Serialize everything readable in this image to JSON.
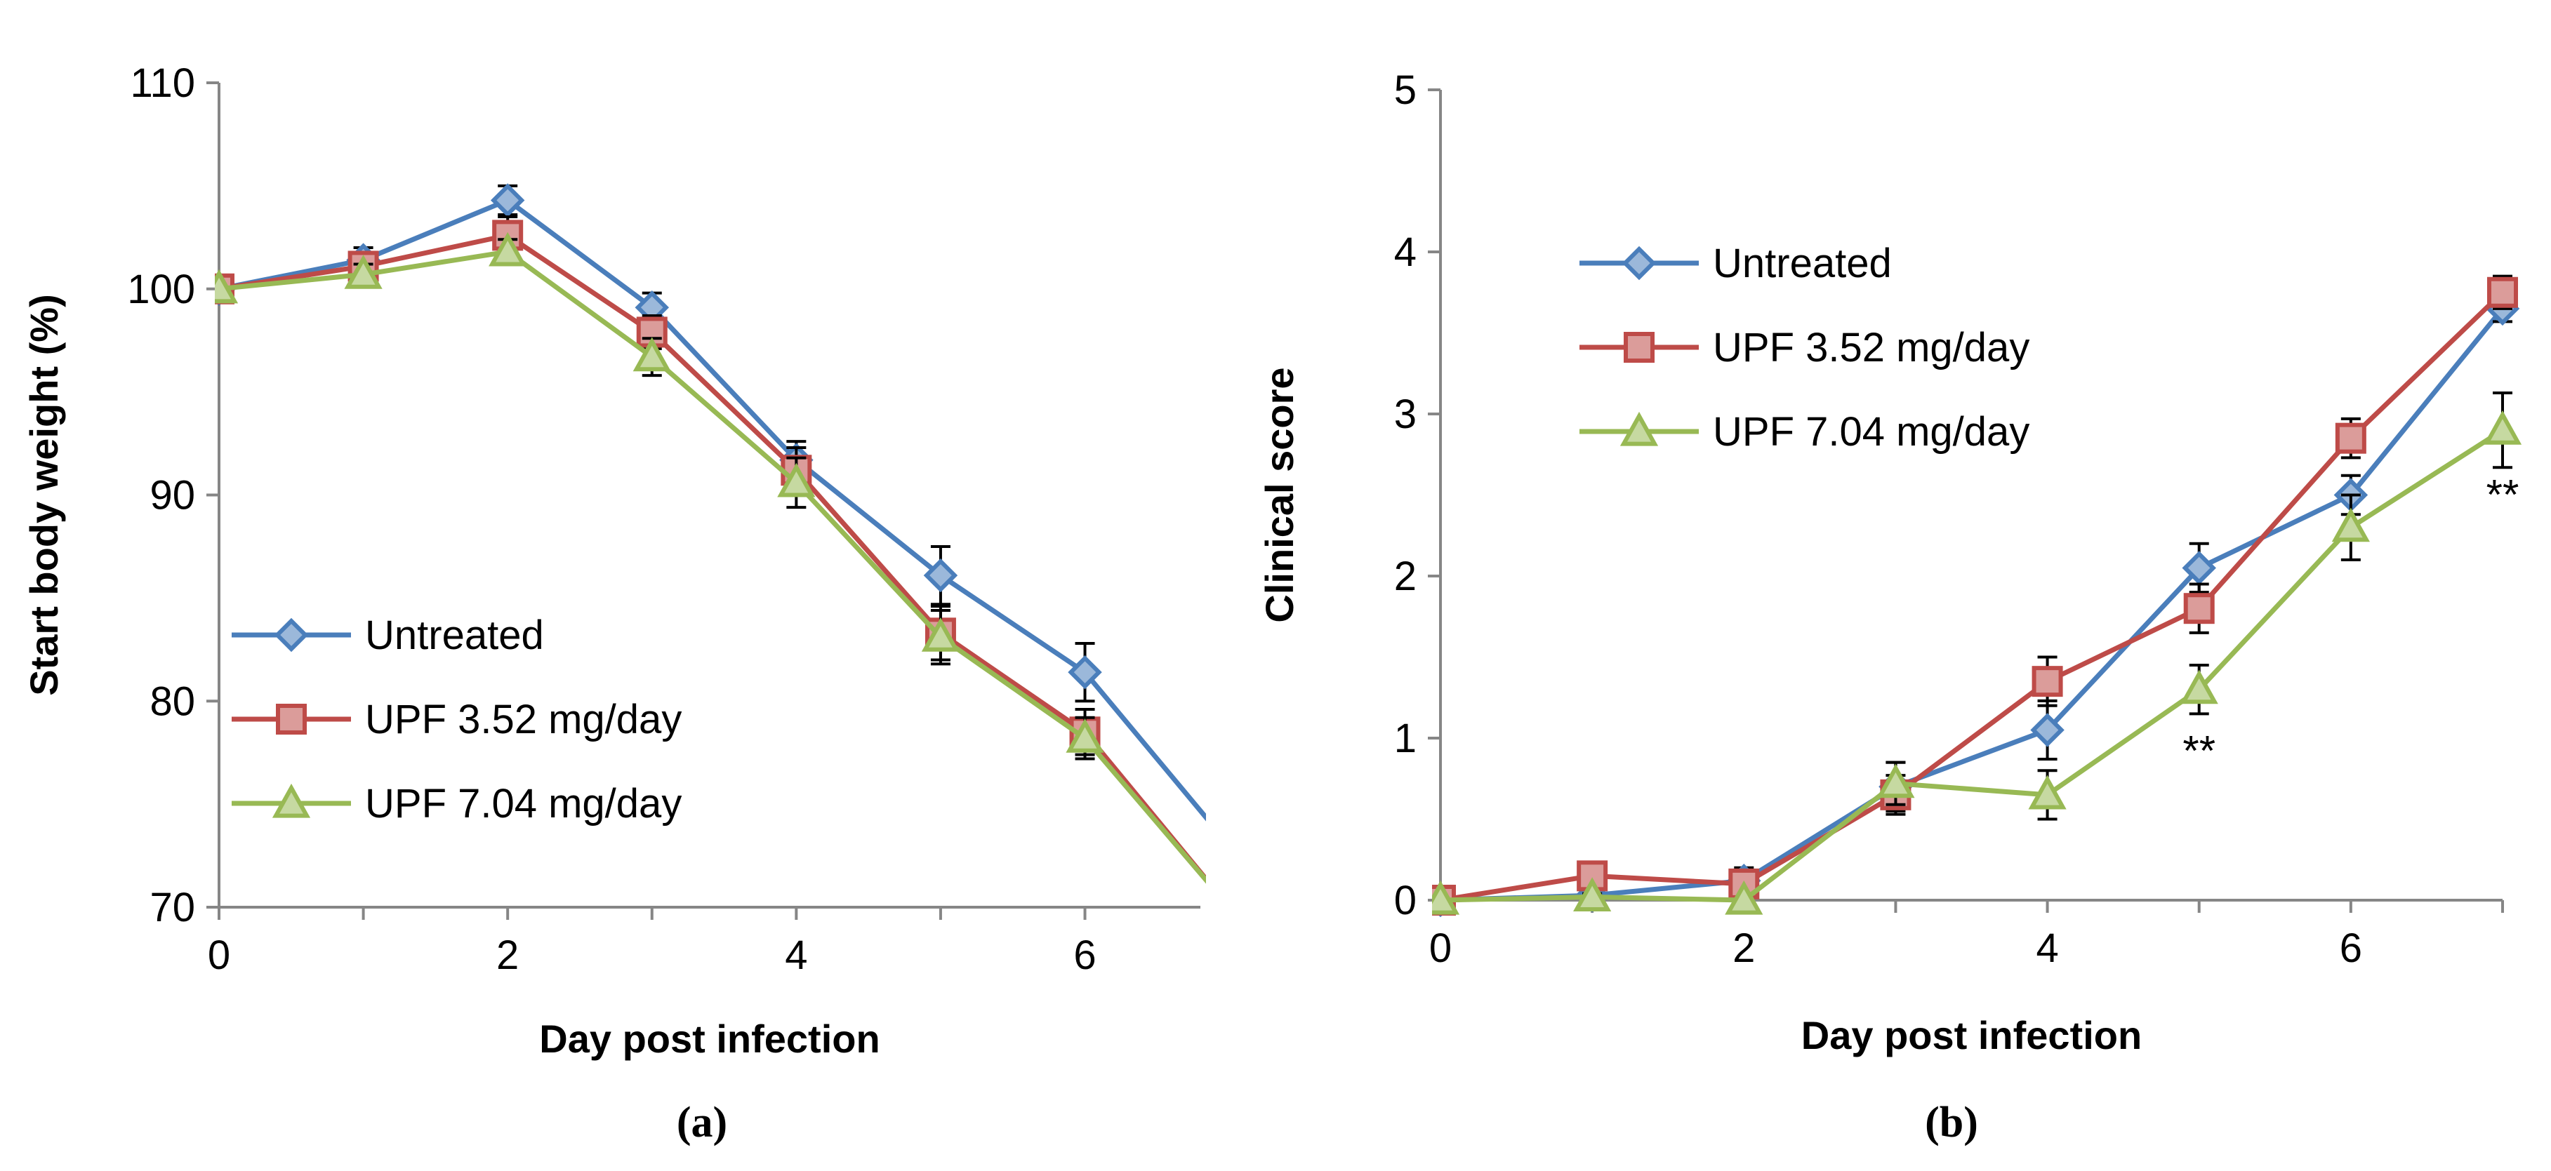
{
  "colors": {
    "untreated": "#4A7EBB",
    "upf352": "#BE4B48",
    "upf704": "#98B954",
    "axis": "#868686",
    "error": "#000000"
  },
  "chart_data": [
    {
      "type": "line",
      "panel_label": "(a)",
      "xlabel": "Day post infection",
      "ylabel": "Start body weight (%)",
      "xlim": [
        0,
        6.8
      ],
      "ylim": [
        70,
        110
      ],
      "xticks": [
        0,
        2,
        4,
        6
      ],
      "yticks": [
        70,
        80,
        90,
        100,
        110
      ],
      "grid": false,
      "legend_position": "bottom-left",
      "series": [
        {
          "name": "Untreated",
          "marker": "diamond",
          "color": "#4A7EBB",
          "x": [
            0,
            1,
            2,
            3,
            4,
            5,
            6,
            7
          ],
          "y": [
            100,
            101.4,
            104.3,
            99.1,
            91.7,
            86.1,
            81.4,
            73
          ],
          "error": [
            0,
            0.6,
            0.7,
            0.7,
            0.9,
            1.4,
            1.4,
            0
          ]
        },
        {
          "name": "UPF 3.52 mg/day",
          "marker": "square",
          "color": "#BE4B48",
          "x": [
            0,
            1,
            2,
            3,
            4,
            5,
            6,
            7
          ],
          "y": [
            100,
            101.1,
            102.6,
            97.9,
            91.2,
            83.3,
            78.5,
            70
          ],
          "error": [
            0,
            0.6,
            0.9,
            0.8,
            1.1,
            1.3,
            1.1,
            0
          ]
        },
        {
          "name": "UPF 7.04 mg/day",
          "marker": "triangle",
          "color": "#98B954",
          "x": [
            0,
            1,
            2,
            3,
            4,
            5,
            6,
            7
          ],
          "y": [
            100,
            100.7,
            101.8,
            96.7,
            90.6,
            83.1,
            78.2,
            70
          ],
          "error": [
            0,
            0.5,
            0.6,
            0.9,
            1.2,
            1.3,
            1.0,
            0
          ]
        }
      ],
      "annotations": []
    },
    {
      "type": "line",
      "panel_label": "(b)",
      "xlabel": "Day post infection",
      "ylabel": "Clinical score",
      "xlim": [
        0,
        7
      ],
      "ylim": [
        0,
        5
      ],
      "xticks": [
        0,
        2,
        4,
        6
      ],
      "yticks": [
        0,
        1,
        2,
        3,
        4,
        5
      ],
      "grid": false,
      "legend_position": "top-left",
      "series": [
        {
          "name": "Untreated",
          "marker": "diamond",
          "color": "#4A7EBB",
          "x": [
            0,
            1,
            2,
            3,
            4,
            5,
            6,
            7
          ],
          "y": [
            0,
            0.03,
            0.12,
            0.7,
            1.05,
            2.05,
            2.5,
            3.65
          ],
          "error": [
            0,
            0.03,
            0.08,
            0.15,
            0.18,
            0.15,
            0.12,
            0.08
          ]
        },
        {
          "name": "UPF 3.52 mg/day",
          "marker": "square",
          "color": "#BE4B48",
          "x": [
            0,
            1,
            2,
            3,
            4,
            5,
            6,
            7
          ],
          "y": [
            0,
            0.15,
            0.1,
            0.65,
            1.35,
            1.8,
            2.85,
            3.75
          ],
          "error": [
            0,
            0.05,
            0.05,
            0.12,
            0.15,
            0.15,
            0.12,
            0.1
          ]
        },
        {
          "name": "UPF 7.04 mg/day",
          "marker": "triangle",
          "color": "#98B954",
          "x": [
            0,
            1,
            2,
            3,
            4,
            5,
            6,
            7
          ],
          "y": [
            0,
            0.02,
            0,
            0.72,
            0.65,
            1.3,
            2.3,
            2.9
          ],
          "error": [
            0,
            0.02,
            0,
            0.13,
            0.15,
            0.15,
            0.2,
            0.23
          ]
        }
      ],
      "annotations": [
        {
          "text": "**",
          "x": 5,
          "y": 0.92
        },
        {
          "text": "**",
          "x": 7,
          "y": 2.5
        }
      ]
    }
  ]
}
